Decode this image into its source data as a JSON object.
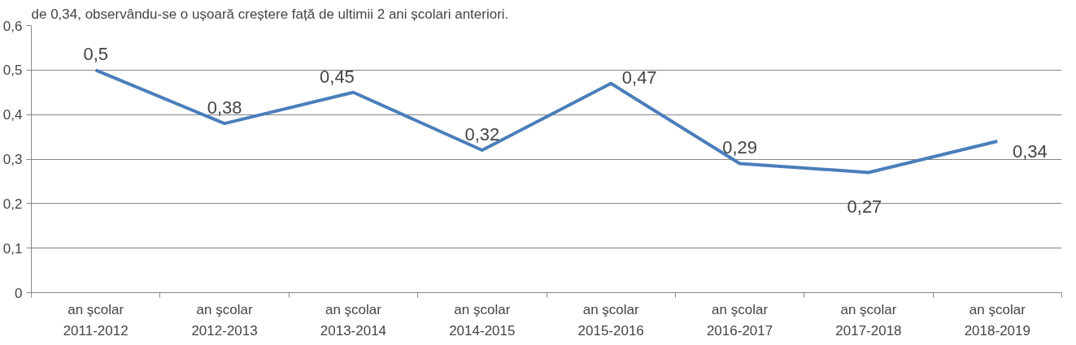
{
  "chart_data": {
    "type": "line",
    "annotations": [
      "de 0,34, observându-se o ușoară creștere față de ultimii 2 ani școlari anteriori."
    ],
    "categories": [
      "an şcolar\n2011-2012",
      "an şcolar\n2012-2013",
      "an şcolar\n2013-2014",
      "an şcolar\n2014-2015",
      "an şcolar\n2015-2016",
      "an şcolar\n2016-2017",
      "an şcolar\n2017-2018",
      "an şcolar\n2018-2019"
    ],
    "values": [
      0.5,
      0.38,
      0.45,
      0.32,
      0.47,
      0.29,
      0.27,
      0.34
    ],
    "value_labels": [
      "0,5",
      "0,38",
      "0,45",
      "0,32",
      "0,47",
      "0,29",
      "0,27",
      "0,34"
    ],
    "color": "#4a7ebb",
    "ylim": [
      0,
      0.6
    ],
    "yticks": [
      {
        "value": 0,
        "label": "0"
      },
      {
        "value": 0.1,
        "label": "0,1"
      },
      {
        "value": 0.2,
        "label": "0,2"
      },
      {
        "value": 0.3,
        "label": "0,3"
      },
      {
        "value": 0.4,
        "label": "0,4"
      },
      {
        "value": 0.5,
        "label": "0,5"
      },
      {
        "value": 0.6,
        "label": "0,6"
      }
    ],
    "grid": "y",
    "legend": false,
    "marker": "none",
    "line_style": "solid"
  }
}
